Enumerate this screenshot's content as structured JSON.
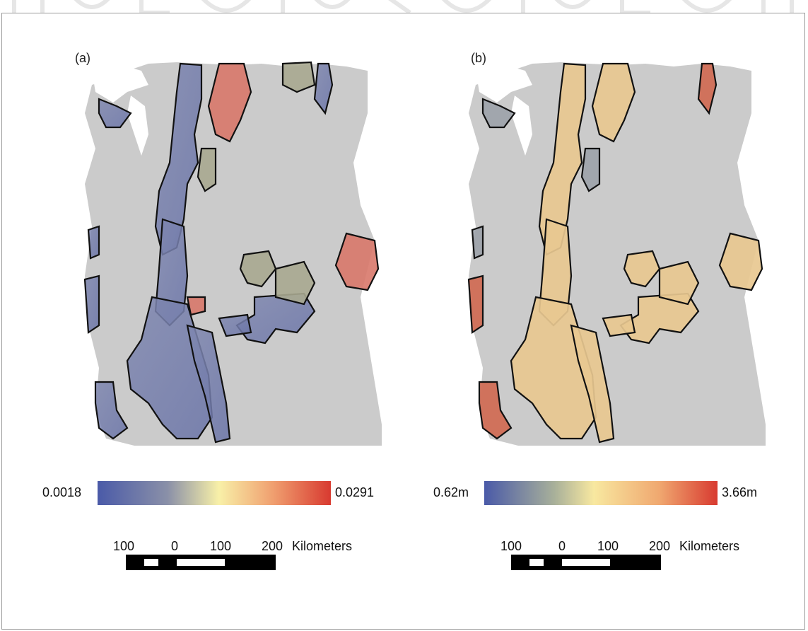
{
  "panels": [
    {
      "label": "(a)",
      "legend": {
        "min": "0.0018",
        "max": "0.0291"
      },
      "scale": {
        "ticks": [
          "100",
          "0",
          "100",
          "200"
        ],
        "unit": "Kilometers"
      }
    },
    {
      "label": "(b)",
      "legend": {
        "min": "0.62m",
        "max": "3.66m"
      },
      "scale": {
        "ticks": [
          "100",
          "0",
          "100",
          "200"
        ],
        "unit": "Kilometers"
      }
    }
  ],
  "colors": {
    "low": "#4a5aa8",
    "mid": "#f8f0a8",
    "high": "#d83a30",
    "hillshade": "#c8c8c8",
    "outline": "#111111"
  }
}
